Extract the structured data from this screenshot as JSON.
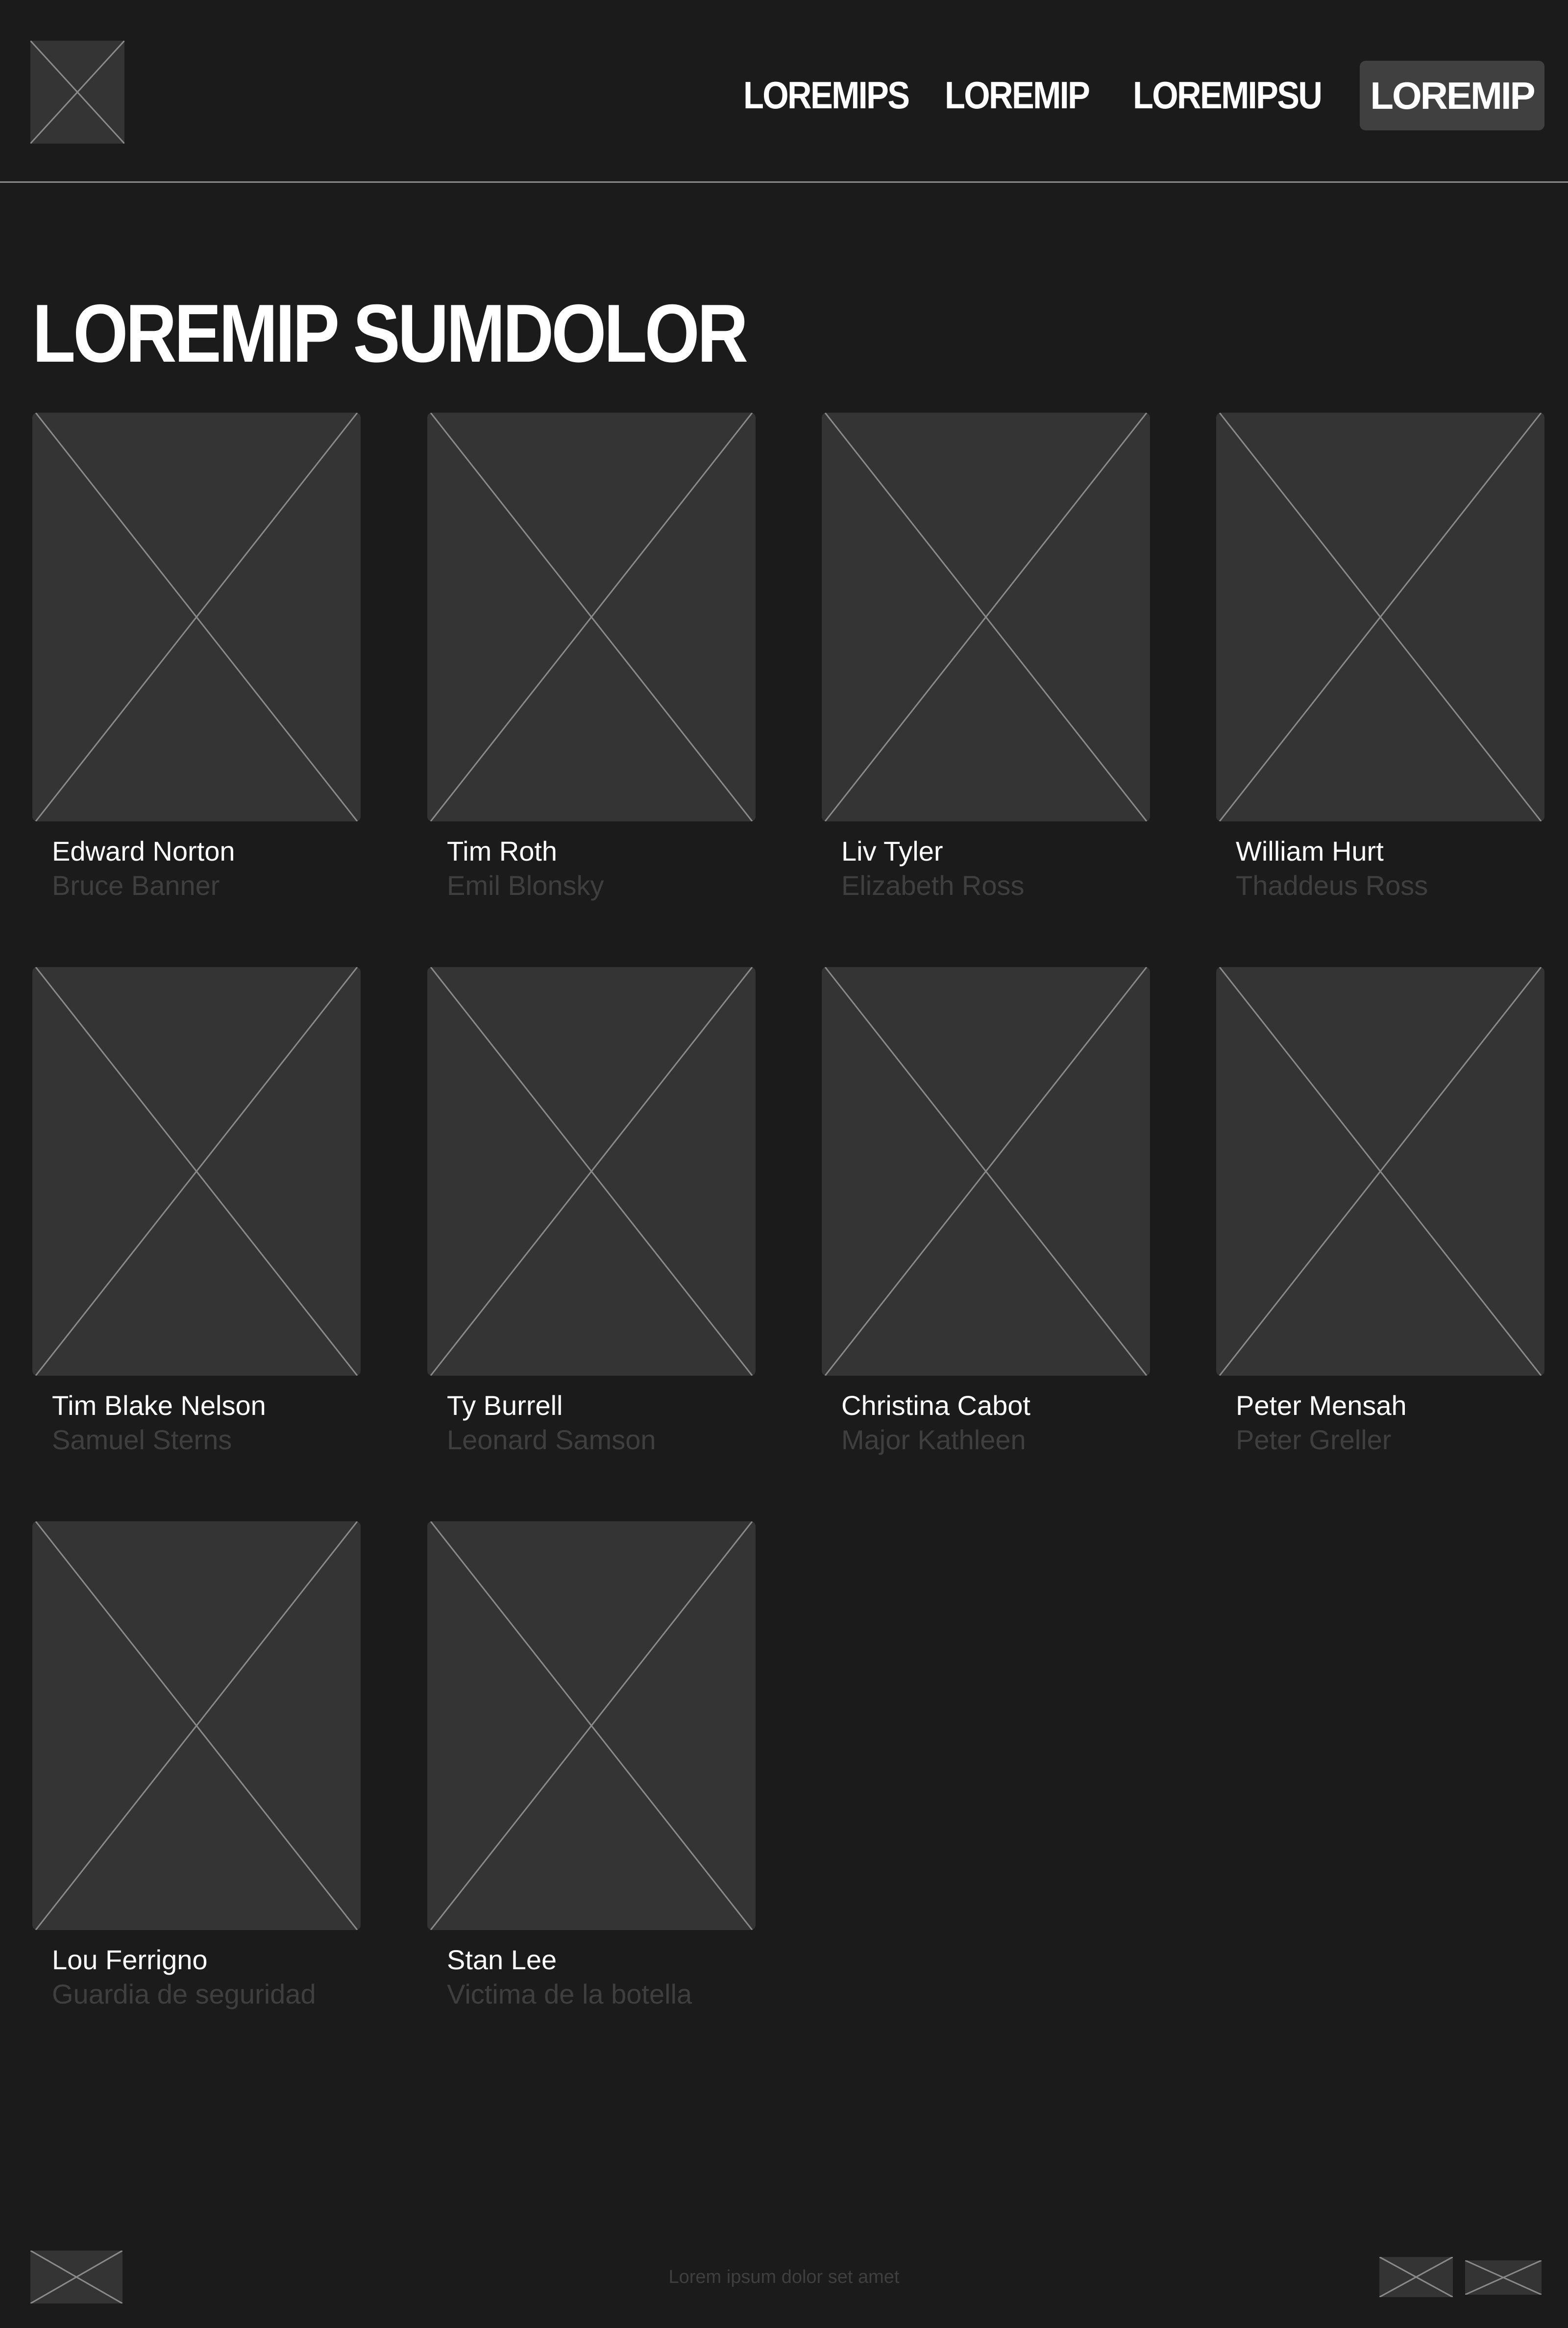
{
  "header": {
    "logo_icon": "image-placeholder-icon",
    "nav": [
      {
        "label": "LOREMIPS"
      },
      {
        "label": "LOREMIP"
      },
      {
        "label": "LOREMIPSU"
      }
    ],
    "cta_label": "LOREMIP"
  },
  "main": {
    "title": "LOREMIP SUMDOLOR",
    "cast": [
      {
        "actor": "Edward Norton",
        "role": "Bruce Banner"
      },
      {
        "actor": "Tim Roth",
        "role": "Emil Blonsky"
      },
      {
        "actor": "Liv Tyler",
        "role": "Elizabeth Ross"
      },
      {
        "actor": "William Hurt",
        "role": "Thaddeus Ross"
      },
      {
        "actor": "Tim Blake Nelson",
        "role": "Samuel Sterns"
      },
      {
        "actor": "Ty Burrell",
        "role": "Leonard Samson"
      },
      {
        "actor": "Christina Cabot",
        "role": "Major Kathleen"
      },
      {
        "actor": "Peter Mensah",
        "role": "Peter Greller"
      },
      {
        "actor": "Lou Ferrigno",
        "role": "Guardia de seguridad"
      },
      {
        "actor": "Stan Lee",
        "role": "Victima de la botella"
      }
    ]
  },
  "footer": {
    "text": "Lorem ipsum dolor set amet",
    "logo_icon": "image-placeholder-icon",
    "social_icons": [
      "image-placeholder-icon",
      "image-placeholder-icon"
    ]
  },
  "colors": {
    "background": "#1b1b1b",
    "placeholder": "#343434",
    "button": "#404040",
    "muted_text": "#3f3f3f",
    "text": "#ffffff"
  }
}
